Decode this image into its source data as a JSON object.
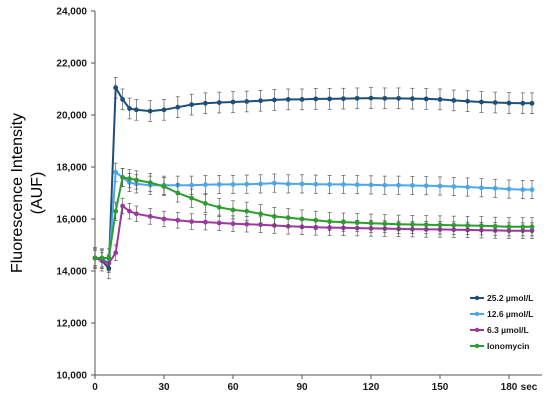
{
  "chart_data": {
    "type": "line",
    "ylabel_line1": "Fluorescence Intensity",
    "ylabel_line2": "(AUF)",
    "xunit": "sec",
    "xlim": [
      0,
      190
    ],
    "ylim": [
      10000,
      24000
    ],
    "x_ticks": [
      0,
      30,
      60,
      90,
      120,
      150,
      180
    ],
    "y_ticks": [
      10000,
      12000,
      14000,
      16000,
      18000,
      20000,
      22000,
      24000
    ],
    "y_tick_labels": [
      "10,000",
      "12,000",
      "14,000",
      "16,000",
      "18,000",
      "20,000",
      "22,000",
      "24,000"
    ],
    "grid": false,
    "legend_position": "right",
    "series": [
      {
        "name": "25.2 µmol/L",
        "color": "#1f4e79",
        "error": 400,
        "x": [
          0,
          3,
          6,
          9,
          12,
          15,
          18,
          24,
          30,
          36,
          42,
          48,
          54,
          60,
          66,
          72,
          78,
          84,
          90,
          96,
          102,
          108,
          114,
          120,
          126,
          132,
          138,
          144,
          150,
          156,
          162,
          168,
          174,
          180,
          186,
          190
        ],
        "y": [
          14500,
          14400,
          14100,
          21050,
          20600,
          20250,
          20200,
          20150,
          20200,
          20300,
          20400,
          20450,
          20480,
          20500,
          20520,
          20550,
          20580,
          20600,
          20600,
          20620,
          20620,
          20630,
          20640,
          20650,
          20640,
          20640,
          20630,
          20620,
          20600,
          20560,
          20530,
          20500,
          20480,
          20460,
          20450,
          20450
        ]
      },
      {
        "name": "12.6 µmol/L",
        "color": "#4aa8e8",
        "error": 350,
        "x": [
          0,
          3,
          6,
          9,
          12,
          15,
          18,
          24,
          30,
          36,
          42,
          48,
          54,
          60,
          66,
          72,
          78,
          84,
          90,
          96,
          102,
          108,
          114,
          120,
          126,
          132,
          138,
          144,
          150,
          156,
          162,
          168,
          174,
          180,
          186,
          190
        ],
        "y": [
          14500,
          14500,
          14300,
          17800,
          17600,
          17400,
          17350,
          17300,
          17300,
          17300,
          17300,
          17320,
          17330,
          17330,
          17340,
          17350,
          17380,
          17350,
          17350,
          17340,
          17330,
          17330,
          17320,
          17310,
          17300,
          17300,
          17290,
          17280,
          17270,
          17250,
          17230,
          17200,
          17180,
          17150,
          17130,
          17130
        ]
      },
      {
        "name": "6.3 µmol/L",
        "color": "#9b3a9c",
        "error": 300,
        "x": [
          0,
          3,
          6,
          9,
          12,
          15,
          18,
          24,
          30,
          36,
          42,
          48,
          54,
          60,
          66,
          72,
          78,
          84,
          90,
          96,
          102,
          108,
          114,
          120,
          126,
          132,
          138,
          144,
          150,
          156,
          162,
          168,
          174,
          180,
          186,
          190
        ],
        "y": [
          14500,
          14400,
          14300,
          14700,
          16500,
          16300,
          16200,
          16100,
          16000,
          15950,
          15900,
          15880,
          15850,
          15820,
          15800,
          15780,
          15750,
          15720,
          15700,
          15680,
          15670,
          15660,
          15650,
          15640,
          15630,
          15620,
          15610,
          15600,
          15600,
          15590,
          15580,
          15570,
          15560,
          15550,
          15550,
          15550
        ]
      },
      {
        "name": "Ionomycin",
        "color": "#2e9c2e",
        "error": 350,
        "x": [
          0,
          3,
          6,
          9,
          12,
          15,
          18,
          24,
          30,
          36,
          42,
          48,
          54,
          60,
          66,
          72,
          78,
          84,
          90,
          96,
          102,
          108,
          114,
          120,
          126,
          132,
          138,
          144,
          150,
          156,
          162,
          168,
          174,
          180,
          186,
          190
        ],
        "y": [
          14500,
          14500,
          14500,
          16300,
          17600,
          17550,
          17500,
          17400,
          17250,
          17000,
          16800,
          16600,
          16450,
          16350,
          16300,
          16200,
          16100,
          16050,
          16000,
          15950,
          15900,
          15880,
          15860,
          15840,
          15820,
          15800,
          15790,
          15780,
          15770,
          15760,
          15750,
          15740,
          15720,
          15700,
          15700,
          15700
        ]
      }
    ]
  }
}
